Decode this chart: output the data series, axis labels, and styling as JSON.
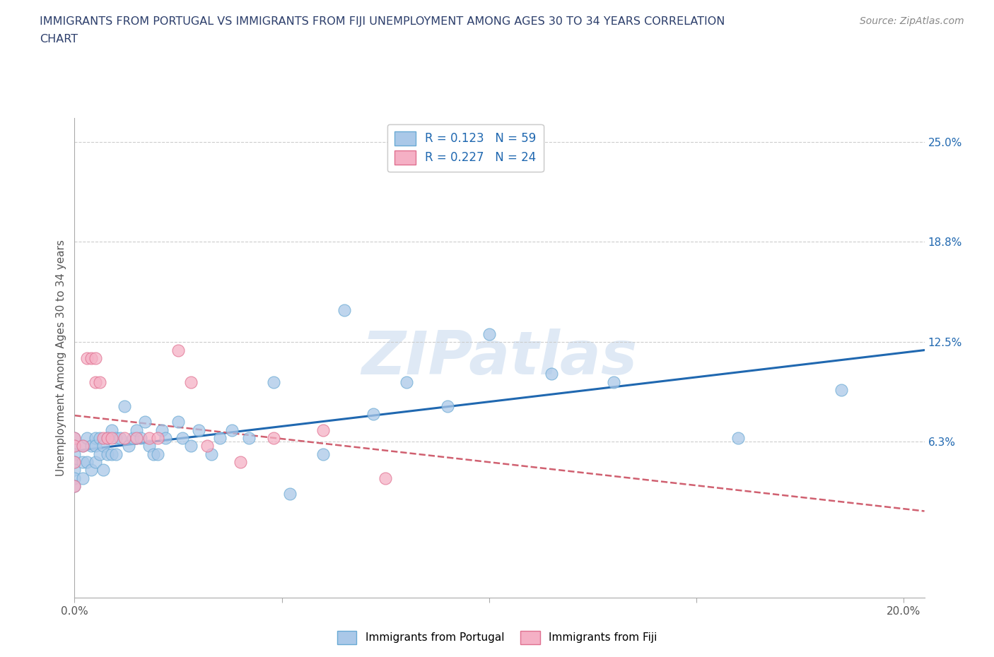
{
  "title_line1": "IMMIGRANTS FROM PORTUGAL VS IMMIGRANTS FROM FIJI UNEMPLOYMENT AMONG AGES 30 TO 34 YEARS CORRELATION",
  "title_line2": "CHART",
  "source": "Source: ZipAtlas.com",
  "ylabel": "Unemployment Among Ages 30 to 34 years",
  "xlim": [
    0.0,
    0.205
  ],
  "ylim": [
    -0.035,
    0.265
  ],
  "y_tick_vals_right": [
    0.063,
    0.125,
    0.188,
    0.25
  ],
  "y_tick_labels_right": [
    "6.3%",
    "12.5%",
    "18.8%",
    "25.0%"
  ],
  "portugal_color": "#aac8e8",
  "portugal_edge": "#6aaad4",
  "fiji_color": "#f5b0c5",
  "fiji_edge": "#e07090",
  "trend_portugal_color": "#2068b0",
  "trend_fiji_color": "#d06070",
  "R_portugal": 0.123,
  "N_portugal": 59,
  "R_fiji": 0.227,
  "N_fiji": 24,
  "watermark": "ZIPatlas",
  "portugal_x": [
    0.0,
    0.0,
    0.0,
    0.0,
    0.0,
    0.0,
    0.0,
    0.002,
    0.002,
    0.002,
    0.003,
    0.003,
    0.004,
    0.004,
    0.005,
    0.005,
    0.005,
    0.006,
    0.006,
    0.007,
    0.007,
    0.008,
    0.008,
    0.009,
    0.009,
    0.01,
    0.01,
    0.011,
    0.012,
    0.013,
    0.014,
    0.015,
    0.016,
    0.017,
    0.018,
    0.019,
    0.02,
    0.021,
    0.022,
    0.025,
    0.026,
    0.028,
    0.03,
    0.033,
    0.035,
    0.038,
    0.042,
    0.048,
    0.052,
    0.06,
    0.065,
    0.072,
    0.08,
    0.09,
    0.1,
    0.115,
    0.13,
    0.16,
    0.185
  ],
  "portugal_y": [
    0.065,
    0.06,
    0.055,
    0.05,
    0.045,
    0.04,
    0.035,
    0.06,
    0.05,
    0.04,
    0.065,
    0.05,
    0.06,
    0.045,
    0.065,
    0.06,
    0.05,
    0.065,
    0.055,
    0.06,
    0.045,
    0.065,
    0.055,
    0.07,
    0.055,
    0.065,
    0.055,
    0.065,
    0.085,
    0.06,
    0.065,
    0.07,
    0.065,
    0.075,
    0.06,
    0.055,
    0.055,
    0.07,
    0.065,
    0.075,
    0.065,
    0.06,
    0.07,
    0.055,
    0.065,
    0.07,
    0.065,
    0.1,
    0.03,
    0.055,
    0.145,
    0.08,
    0.1,
    0.085,
    0.13,
    0.105,
    0.1,
    0.065,
    0.095
  ],
  "fiji_x": [
    0.0,
    0.0,
    0.0,
    0.0,
    0.002,
    0.003,
    0.004,
    0.005,
    0.005,
    0.006,
    0.007,
    0.008,
    0.009,
    0.012,
    0.015,
    0.018,
    0.02,
    0.025,
    0.028,
    0.032,
    0.04,
    0.048,
    0.06,
    0.075
  ],
  "fiji_y": [
    0.065,
    0.06,
    0.05,
    0.035,
    0.06,
    0.115,
    0.115,
    0.115,
    0.1,
    0.1,
    0.065,
    0.065,
    0.065,
    0.065,
    0.065,
    0.065,
    0.065,
    0.12,
    0.1,
    0.06,
    0.05,
    0.065,
    0.07,
    0.04
  ]
}
